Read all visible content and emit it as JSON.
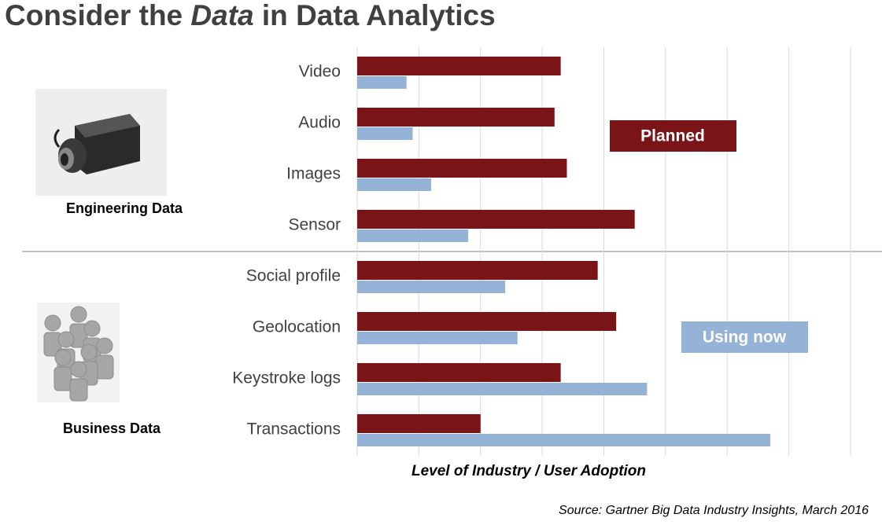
{
  "chart_data": {
    "type": "bar",
    "orientation": "horizontal",
    "title_parts": [
      "Consider the ",
      "Data",
      " in Data Analytics"
    ],
    "xlabel": "Level of Industry / User Adoption",
    "source": "Source:  Gartner Big Data Industry Insights, March 2016",
    "group_labels": [
      "Engineering Data",
      "Business Data"
    ],
    "categories": [
      "Video",
      "Audio",
      "Images",
      "Sensor",
      "Social profile",
      "Geolocation",
      "Keystroke logs",
      "Transactions"
    ],
    "series": [
      {
        "name": "Planned",
        "color": "#7b1416",
        "values": [
          3.3,
          3.2,
          3.4,
          4.5,
          3.9,
          4.2,
          3.3,
          2.0
        ]
      },
      {
        "name": "Using now",
        "color": "#95b3d7",
        "values": [
          0.8,
          0.9,
          1.2,
          1.8,
          2.4,
          2.6,
          4.7,
          6.7
        ]
      }
    ],
    "xlim": [
      0,
      8
    ],
    "xticks": [
      0,
      1,
      2,
      3,
      4,
      5,
      6,
      7,
      8
    ],
    "grid": true
  }
}
